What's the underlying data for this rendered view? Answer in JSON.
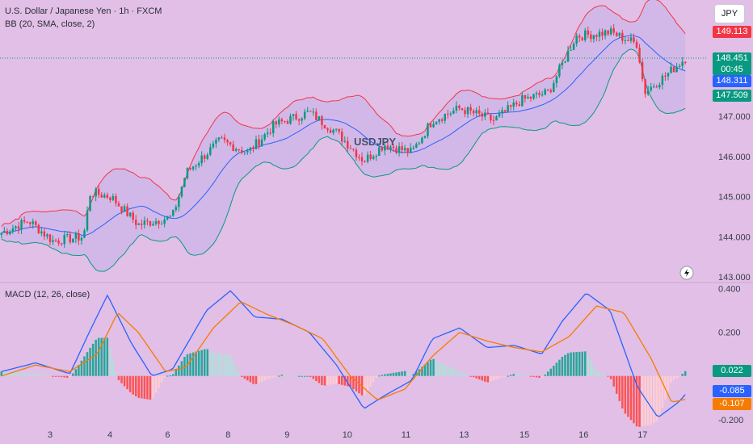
{
  "header": {
    "symbol_title": "U.S. Dollar / Japanese Yen · 1h · FXCM",
    "indicator": "BB (20, SMA, close, 2)",
    "watermark": "USDJPY",
    "currency_button": "JPY"
  },
  "price_badges": [
    {
      "label": "149.113",
      "color": "#f23645",
      "value": 149.113
    },
    {
      "label": "148.451",
      "sub": "00:45",
      "color": "#089981",
      "value": 148.451
    },
    {
      "label": "148.311",
      "color": "#2962ff",
      "value": 148.311
    },
    {
      "label": "147.509",
      "color": "#089981",
      "value": 147.509
    }
  ],
  "macd": {
    "legend": "MACD (12, 26, close)",
    "badges": [
      {
        "label": "0.022",
        "color": "#089981",
        "value": 0.022
      },
      {
        "label": "-0.085",
        "color": "#2962ff",
        "value": -0.085
      },
      {
        "label": "-0.107",
        "color": "#f57c00",
        "value": -0.107
      }
    ]
  },
  "chart_data": [
    {
      "type": "candlestick",
      "title": "U.S. Dollar / Japanese Yen · 1h · FXCM",
      "ylim": [
        142.9,
        149.9
      ],
      "yticks": [
        "143.000",
        "144.000",
        "145.000",
        "146.000",
        "147.000"
      ],
      "ytick_values": [
        143,
        144,
        145,
        146,
        147
      ],
      "xticks": [
        "3",
        "4",
        "6",
        "8",
        "9",
        "10",
        "11",
        "13",
        "15",
        "16",
        "17"
      ],
      "xtick_pos": [
        0.073,
        0.16,
        0.244,
        0.332,
        0.418,
        0.502,
        0.588,
        0.672,
        0.76,
        0.846,
        0.932
      ],
      "close_anchors": [
        [
          0,
          144.1
        ],
        [
          0.04,
          144.4
        ],
        [
          0.075,
          143.9
        ],
        [
          0.12,
          144.0
        ],
        [
          0.13,
          145.1
        ],
        [
          0.16,
          145.0
        ],
        [
          0.2,
          144.3
        ],
        [
          0.25,
          144.5
        ],
        [
          0.27,
          145.6
        ],
        [
          0.32,
          146.4
        ],
        [
          0.36,
          146.1
        ],
        [
          0.4,
          146.8
        ],
        [
          0.45,
          147.1
        ],
        [
          0.49,
          146.6
        ],
        [
          0.53,
          145.9
        ],
        [
          0.56,
          146.3
        ],
        [
          0.6,
          146.1
        ],
        [
          0.63,
          146.9
        ],
        [
          0.67,
          147.2
        ],
        [
          0.72,
          146.9
        ],
        [
          0.76,
          147.4
        ],
        [
          0.8,
          147.6
        ],
        [
          0.84,
          149.0
        ],
        [
          0.89,
          149.1
        ],
        [
          0.93,
          148.8
        ],
        [
          0.94,
          147.6
        ],
        [
          0.97,
          148.0
        ],
        [
          1.0,
          148.45
        ]
      ],
      "series": [
        {
          "name": "BB basis",
          "color": "#2962ff"
        },
        {
          "name": "BB upper",
          "color": "#f23645"
        },
        {
          "name": "BB lower",
          "color": "#089981"
        }
      ],
      "last_price": 148.451
    },
    {
      "type": "macd",
      "title": "MACD (12, 26, close)",
      "ylim": [
        -0.23,
        0.42
      ],
      "yticks": [
        "0.400",
        "0.200",
        "-0.200"
      ],
      "ytick_values": [
        0.4,
        0.2,
        -0.2
      ],
      "macd_anchors": [
        [
          0,
          0.02
        ],
        [
          0.05,
          0.06
        ],
        [
          0.1,
          0.01
        ],
        [
          0.13,
          0.21
        ],
        [
          0.155,
          0.37
        ],
        [
          0.19,
          0.15
        ],
        [
          0.22,
          0.0
        ],
        [
          0.25,
          0.03
        ],
        [
          0.3,
          0.3
        ],
        [
          0.335,
          0.39
        ],
        [
          0.37,
          0.27
        ],
        [
          0.41,
          0.26
        ],
        [
          0.45,
          0.2
        ],
        [
          0.49,
          0.05
        ],
        [
          0.53,
          -0.15
        ],
        [
          0.56,
          -0.09
        ],
        [
          0.6,
          -0.02
        ],
        [
          0.63,
          0.17
        ],
        [
          0.67,
          0.22
        ],
        [
          0.71,
          0.13
        ],
        [
          0.75,
          0.14
        ],
        [
          0.79,
          0.1
        ],
        [
          0.82,
          0.25
        ],
        [
          0.855,
          0.38
        ],
        [
          0.89,
          0.3
        ],
        [
          0.93,
          -0.05
        ],
        [
          0.96,
          -0.19
        ],
        [
          0.99,
          -0.12
        ],
        [
          1.0,
          -0.085
        ]
      ],
      "signal_anchors": [
        [
          0,
          0.0
        ],
        [
          0.05,
          0.05
        ],
        [
          0.1,
          0.02
        ],
        [
          0.14,
          0.1
        ],
        [
          0.17,
          0.29
        ],
        [
          0.2,
          0.2
        ],
        [
          0.24,
          0.02
        ],
        [
          0.27,
          0.04
        ],
        [
          0.31,
          0.22
        ],
        [
          0.35,
          0.34
        ],
        [
          0.39,
          0.28
        ],
        [
          0.43,
          0.23
        ],
        [
          0.47,
          0.17
        ],
        [
          0.51,
          0.0
        ],
        [
          0.55,
          -0.11
        ],
        [
          0.59,
          -0.06
        ],
        [
          0.63,
          0.09
        ],
        [
          0.67,
          0.2
        ],
        [
          0.71,
          0.16
        ],
        [
          0.75,
          0.13
        ],
        [
          0.79,
          0.11
        ],
        [
          0.83,
          0.18
        ],
        [
          0.87,
          0.32
        ],
        [
          0.91,
          0.29
        ],
        [
          0.95,
          0.08
        ],
        [
          0.98,
          -0.12
        ],
        [
          1.0,
          -0.107
        ]
      ],
      "series": [
        {
          "name": "MACD",
          "color": "#2962ff"
        },
        {
          "name": "Signal",
          "color": "#f57c00"
        },
        {
          "name": "Histogram"
        }
      ],
      "values": {
        "histogram": 0.022,
        "macd": -0.085,
        "signal": -0.107
      }
    }
  ]
}
